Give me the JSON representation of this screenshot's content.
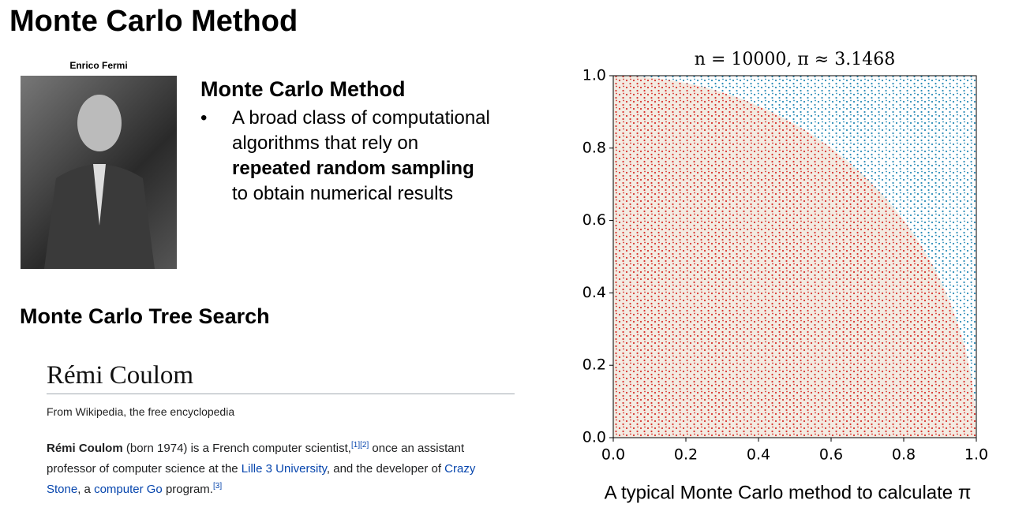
{
  "header": {
    "title": "Monte Carlo Method"
  },
  "photo": {
    "caption": "Enrico Fermi"
  },
  "method": {
    "heading": "Monte Carlo Method",
    "bullet": [
      "A broad class of computational algorithms that rely on",
      "repeated random sampling",
      "to obtain numerical results"
    ]
  },
  "mcts": {
    "heading": "Monte Carlo Tree Search"
  },
  "wiki": {
    "title": "Rémi Coulom",
    "tagline": "From Wikipedia, the free encyclopedia",
    "paragraph": [
      {
        "text": "Rémi Coulom",
        "style": "bold"
      },
      {
        "text": " (born 1974) is a French computer scientist,",
        "style": "plain"
      },
      {
        "text": "[1][2]",
        "style": "sup"
      },
      {
        "text": " once an assistant professor of computer science at the ",
        "style": "plain"
      },
      {
        "text": "Lille 3 University",
        "style": "link"
      },
      {
        "text": ", and the developer of ",
        "style": "plain"
      },
      {
        "text": "Crazy Stone",
        "style": "link"
      },
      {
        "text": ", a ",
        "style": "plain"
      },
      {
        "text": "computer Go",
        "style": "link"
      },
      {
        "text": " program.",
        "style": "plain"
      },
      {
        "text": "[3]",
        "style": "sup"
      }
    ]
  },
  "chart_data": {
    "type": "scatter",
    "title": "n = 10000, π ≈ 3.1468",
    "caption": "A typical Monte Carlo method to calculate π",
    "xlim": [
      0,
      1
    ],
    "ylim": [
      0,
      1
    ],
    "xticks": [
      {
        "value": 0,
        "label": "0.0"
      },
      0.2,
      0.4,
      0.6,
      0.8,
      {
        "value": 1,
        "label": "1.0"
      }
    ],
    "yticks": [
      {
        "value": 0,
        "label": "0.0"
      },
      0.2,
      0.4,
      0.6,
      0.8,
      {
        "value": 1,
        "label": "1.0"
      }
    ],
    "inside_color": "#d8322c",
    "outside_color": "#2b8cb8"
  }
}
